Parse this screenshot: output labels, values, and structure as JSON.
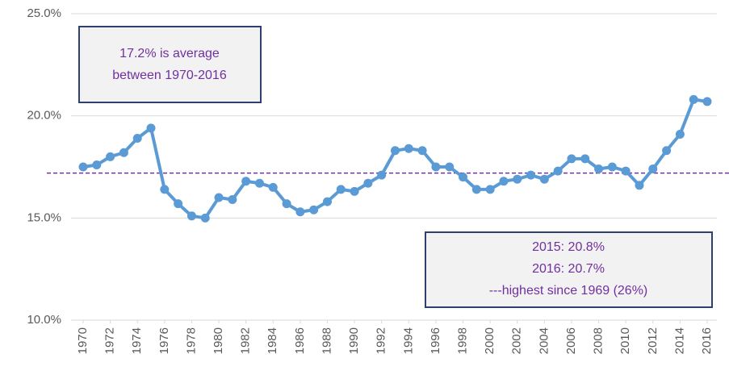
{
  "chart_data": {
    "type": "line",
    "x": [
      1970,
      1971,
      1972,
      1973,
      1974,
      1975,
      1976,
      1977,
      1978,
      1979,
      1980,
      1981,
      1982,
      1983,
      1984,
      1985,
      1986,
      1987,
      1988,
      1989,
      1990,
      1991,
      1992,
      1993,
      1994,
      1995,
      1996,
      1997,
      1998,
      1999,
      2000,
      2001,
      2002,
      2003,
      2004,
      2005,
      2006,
      2007,
      2008,
      2009,
      2010,
      2011,
      2012,
      2013,
      2014,
      2015,
      2016
    ],
    "series": [
      {
        "color": "#5b9bd5",
        "values": [
          17.5,
          17.6,
          18.0,
          18.2,
          18.9,
          19.4,
          16.4,
          15.7,
          15.1,
          15.0,
          16.0,
          15.9,
          16.8,
          16.7,
          16.5,
          15.7,
          15.3,
          15.4,
          15.8,
          16.4,
          16.3,
          16.7,
          17.1,
          18.3,
          18.4,
          18.3,
          17.5,
          17.5,
          17.0,
          16.4,
          16.4,
          16.8,
          16.9,
          17.1,
          16.9,
          17.3,
          17.9,
          17.9,
          17.4,
          17.5,
          17.3,
          16.6,
          17.4,
          18.3,
          19.1,
          20.8,
          20.7
        ]
      }
    ],
    "xlim": [
      1970,
      2016
    ],
    "xticks": [
      1970,
      1972,
      1974,
      1976,
      1978,
      1980,
      1982,
      1984,
      1986,
      1988,
      1990,
      1992,
      1994,
      1996,
      1998,
      2000,
      2002,
      2004,
      2006,
      2008,
      2010,
      2012,
      2014,
      2016
    ],
    "ylim": [
      10,
      25
    ],
    "yticks": [
      {
        "value": 10,
        "label": "10.0%"
      },
      {
        "value": 15,
        "label": "15.0%"
      },
      {
        "value": 20,
        "label": "20.0%"
      },
      {
        "value": 25,
        "label": "25.0%"
      }
    ],
    "grid": true,
    "reference_line": {
      "value": 17.2,
      "color": "#7030a0"
    },
    "annotations": [
      {
        "lines": [
          "17.2% is average",
          "between 1970-2016"
        ]
      },
      {
        "lines": [
          "2015: 20.8%",
          "2016: 20.7%",
          "---highest since 1969 (26%)"
        ]
      }
    ]
  }
}
